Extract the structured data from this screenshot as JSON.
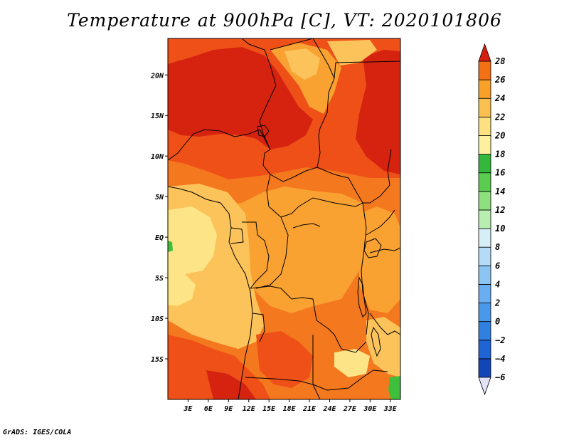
{
  "title": "Temperature at 900hPa [C], VT: 2020101806",
  "footer": "GrADS: IGES/COLA",
  "map": {
    "lon_range": [
      0,
      34.5
    ],
    "lat_range": [
      -20,
      24.5
    ],
    "lon_ticks": [
      {
        "value": 3,
        "label": "3E"
      },
      {
        "value": 6,
        "label": "6E"
      },
      {
        "value": 9,
        "label": "9E"
      },
      {
        "value": 12,
        "label": "12E"
      },
      {
        "value": 15,
        "label": "15E"
      },
      {
        "value": 18,
        "label": "18E"
      },
      {
        "value": 21,
        "label": "21E"
      },
      {
        "value": 24,
        "label": "24E"
      },
      {
        "value": 27,
        "label": "27E"
      },
      {
        "value": 30,
        "label": "30E"
      },
      {
        "value": 33,
        "label": "33E"
      }
    ],
    "lat_ticks": [
      {
        "value": 20,
        "label": "20N"
      },
      {
        "value": 15,
        "label": "15N"
      },
      {
        "value": 10,
        "label": "10N"
      },
      {
        "value": 5,
        "label": "5N"
      },
      {
        "value": 0,
        "label": "EQ"
      },
      {
        "value": -5,
        "label": "5S"
      },
      {
        "value": -10,
        "label": "10S"
      },
      {
        "value": -15,
        "label": "15S"
      }
    ]
  },
  "colorbar": {
    "levels": [
      -6,
      -4,
      -2,
      0,
      2,
      4,
      6,
      8,
      10,
      12,
      14,
      16,
      18,
      20,
      22,
      24,
      26,
      28
    ],
    "colors": [
      "#0a2a8a",
      "#1146b8",
      "#1e64d4",
      "#2f80e0",
      "#4a98ea",
      "#68aef0",
      "#8cc4f4",
      "#b4dcf8",
      "#d6eef6",
      "#b8eeb0",
      "#8ee07e",
      "#5acc50",
      "#34b83c",
      "#fff0a0",
      "#fde080",
      "#fcc050",
      "#f8a028",
      "#f47014",
      "#e84010",
      "#d42010"
    ],
    "under_color": "#e2e2f8",
    "over_color": "#d42010"
  },
  "colors": {
    "t26": "#d62310",
    "t24": "#ee5018",
    "t22": "#f4781e",
    "t20": "#f9a232",
    "t18": "#fcc35a",
    "t16": "#fde587",
    "t14": "#3fbe3c"
  }
}
